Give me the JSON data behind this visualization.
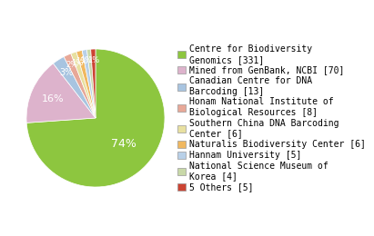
{
  "labels": [
    "Centre for Biodiversity\nGenomics [331]",
    "Mined from GenBank, NCBI [70]",
    "Canadian Centre for DNA\nBarcoding [13]",
    "Honam National Institute of\nBiological Resources [8]",
    "Southern China DNA Barcoding\nCenter [6]",
    "Naturalis Biodiversity Center [6]",
    "Hannam University [5]",
    "National Science Museum of\nKorea [4]",
    "5 Others [5]"
  ],
  "values": [
    331,
    70,
    13,
    8,
    6,
    6,
    5,
    4,
    5
  ],
  "colors": [
    "#8dc63f",
    "#ddb3cc",
    "#a8c4e0",
    "#e8a898",
    "#e8e0a0",
    "#f0b860",
    "#b8d0e8",
    "#c8d8a8",
    "#cc4433"
  ],
  "legend_fontsize": 7.0,
  "pct_fontsize_large": 9,
  "pct_fontsize_small": 6,
  "bg_color": "#ffffff"
}
